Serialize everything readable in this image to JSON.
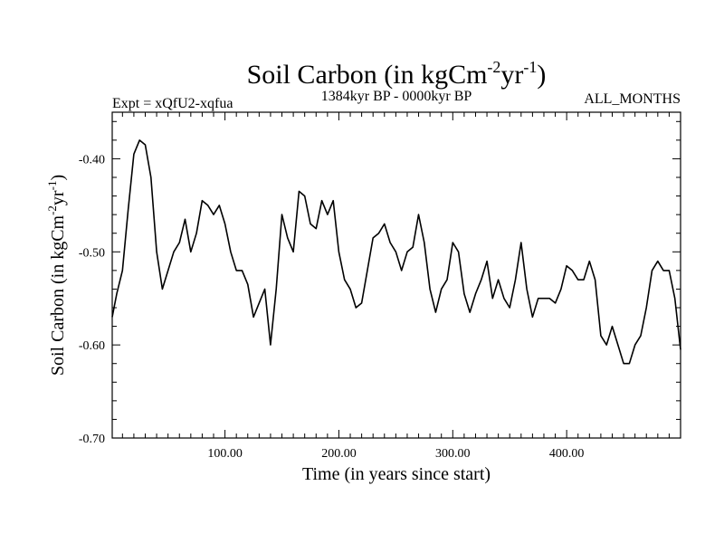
{
  "chart_data": {
    "type": "line",
    "title": {
      "main": "Soil Carbon (in kgCm",
      "sup1": "-2",
      "mid": "yr",
      "sup2": "-1",
      "end": ")"
    },
    "subtitle_left": "Expt = xQfU2-xqfua",
    "subtitle_center": "1384kyr BP - 0000kyr BP",
    "subtitle_right": "ALL_MONTHS",
    "xlabel": "Time (in years since start)",
    "ylabel": {
      "main": "Soil Carbon (in kgCm",
      "sup1": "-2",
      "mid": "yr",
      "sup2": "-1",
      "end": ")"
    },
    "xlim": [
      1,
      500
    ],
    "ylim": [
      -0.7,
      -0.35
    ],
    "x_ticks": [
      100,
      200,
      300,
      400
    ],
    "x_tick_labels": [
      "100.00",
      "200.00",
      "300.00",
      "400.00"
    ],
    "y_ticks": [
      -0.7,
      -0.6,
      -0.5,
      -0.4
    ],
    "y_tick_labels": [
      "-0.70",
      "-0.60",
      "-0.50",
      "-0.40"
    ],
    "series": [
      {
        "name": "Soil Carbon",
        "color": "#000000",
        "x": [
          1,
          5,
          10,
          15,
          20,
          25,
          30,
          35,
          40,
          45,
          50,
          55,
          60,
          65,
          70,
          75,
          80,
          85,
          90,
          95,
          100,
          105,
          110,
          115,
          120,
          125,
          130,
          135,
          140,
          145,
          150,
          155,
          160,
          165,
          170,
          175,
          180,
          185,
          190,
          195,
          200,
          205,
          210,
          215,
          220,
          225,
          230,
          235,
          240,
          245,
          250,
          255,
          260,
          265,
          270,
          275,
          280,
          285,
          290,
          295,
          300,
          305,
          310,
          315,
          320,
          325,
          330,
          335,
          340,
          345,
          350,
          355,
          360,
          365,
          370,
          375,
          380,
          385,
          390,
          395,
          400,
          405,
          410,
          415,
          420,
          425,
          430,
          435,
          440,
          445,
          450,
          455,
          460,
          465,
          470,
          475,
          480,
          485,
          490,
          495,
          500
        ],
        "values": [
          -0.57,
          -0.545,
          -0.52,
          -0.455,
          -0.395,
          -0.38,
          -0.385,
          -0.42,
          -0.5,
          -0.54,
          -0.52,
          -0.5,
          -0.49,
          -0.465,
          -0.5,
          -0.48,
          -0.445,
          -0.45,
          -0.46,
          -0.45,
          -0.47,
          -0.5,
          -0.52,
          -0.52,
          -0.535,
          -0.57,
          -0.555,
          -0.54,
          -0.6,
          -0.54,
          -0.46,
          -0.485,
          -0.5,
          -0.435,
          -0.44,
          -0.47,
          -0.475,
          -0.445,
          -0.46,
          -0.445,
          -0.5,
          -0.53,
          -0.54,
          -0.56,
          -0.555,
          -0.52,
          -0.485,
          -0.48,
          -0.47,
          -0.49,
          -0.5,
          -0.52,
          -0.5,
          -0.495,
          -0.46,
          -0.49,
          -0.54,
          -0.565,
          -0.54,
          -0.53,
          -0.49,
          -0.5,
          -0.545,
          -0.565,
          -0.545,
          -0.53,
          -0.51,
          -0.55,
          -0.53,
          -0.55,
          -0.56,
          -0.53,
          -0.49,
          -0.54,
          -0.57,
          -0.55,
          -0.55,
          -0.55,
          -0.555,
          -0.54,
          -0.515,
          -0.52,
          -0.53,
          -0.53,
          -0.51,
          -0.53,
          -0.59,
          -0.6,
          -0.58,
          -0.6,
          -0.62,
          -0.62,
          -0.6,
          -0.59,
          -0.56,
          -0.52,
          -0.51,
          -0.52,
          -0.52,
          -0.55,
          -0.605
        ]
      }
    ]
  }
}
